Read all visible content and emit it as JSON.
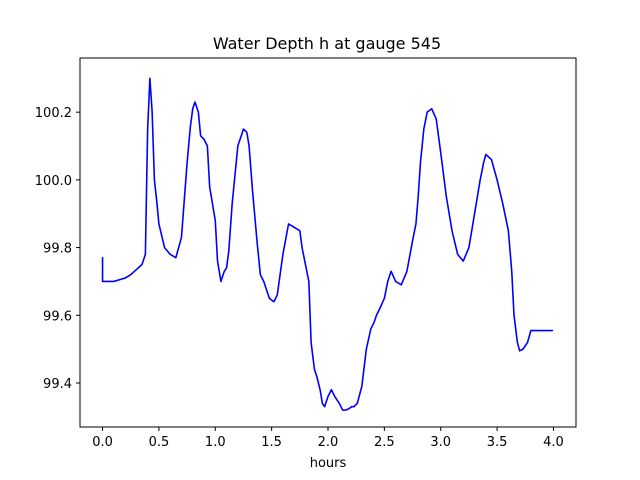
{
  "chart_data": {
    "type": "line",
    "title": "Water Depth h at gauge 545",
    "xlabel": "hours",
    "ylabel": "",
    "xlim": [
      -0.2,
      4.2
    ],
    "ylim": [
      99.27,
      100.36
    ],
    "xticks": [
      0.0,
      0.5,
      1.0,
      1.5,
      2.0,
      2.5,
      3.0,
      3.5,
      4.0
    ],
    "xtick_labels": [
      "0.0",
      "0.5",
      "1.0",
      "1.5",
      "2.0",
      "2.5",
      "3.0",
      "3.5",
      "4.0"
    ],
    "yticks": [
      99.4,
      99.6,
      99.8,
      100.0,
      100.2
    ],
    "ytick_labels": [
      "99.4",
      "99.6",
      "99.8",
      "100.0",
      "100.2"
    ],
    "grid": false,
    "series": [
      {
        "color": "#0000ff",
        "x": [
          0.0,
          0.0,
          0.05,
          0.1,
          0.15,
          0.2,
          0.25,
          0.3,
          0.35,
          0.38,
          0.4,
          0.42,
          0.44,
          0.46,
          0.48,
          0.5,
          0.55,
          0.6,
          0.65,
          0.7,
          0.75,
          0.78,
          0.8,
          0.82,
          0.85,
          0.87,
          0.9,
          0.93,
          0.95,
          0.98,
          1.0,
          1.02,
          1.05,
          1.08,
          1.1,
          1.12,
          1.15,
          1.2,
          1.25,
          1.28,
          1.3,
          1.33,
          1.37,
          1.4,
          1.43,
          1.45,
          1.48,
          1.52,
          1.55,
          1.6,
          1.65,
          1.7,
          1.75,
          1.77,
          1.8,
          1.83,
          1.85,
          1.88,
          1.9,
          1.93,
          1.95,
          1.97,
          2.0,
          2.03,
          2.06,
          2.1,
          2.13,
          2.16,
          2.19,
          2.21,
          2.23,
          2.26,
          2.3,
          2.34,
          2.38,
          2.41,
          2.43,
          2.46,
          2.5,
          2.53,
          2.56,
          2.6,
          2.65,
          2.7,
          2.75,
          2.78,
          2.8,
          2.82,
          2.85,
          2.88,
          2.92,
          2.96,
          3.0,
          3.05,
          3.1,
          3.15,
          3.2,
          3.25,
          3.3,
          3.35,
          3.38,
          3.4,
          3.45,
          3.5,
          3.55,
          3.6,
          3.63,
          3.65,
          3.68,
          3.7,
          3.73,
          3.77,
          3.8,
          3.83,
          3.87,
          3.9,
          3.93,
          3.96,
          3.98,
          3.99
        ],
        "y": [
          99.77,
          99.7,
          99.7,
          99.7,
          99.705,
          99.71,
          99.72,
          99.735,
          99.75,
          99.78,
          100.15,
          100.3,
          100.2,
          100.0,
          99.94,
          99.87,
          99.8,
          99.78,
          99.77,
          99.83,
          100.05,
          100.16,
          100.21,
          100.23,
          100.2,
          100.13,
          100.12,
          100.1,
          99.98,
          99.92,
          99.88,
          99.76,
          99.7,
          99.73,
          99.74,
          99.79,
          99.93,
          100.1,
          100.15,
          100.14,
          100.1,
          99.97,
          99.82,
          99.72,
          99.7,
          99.68,
          99.65,
          99.64,
          99.66,
          99.78,
          99.87,
          99.86,
          99.85,
          99.8,
          99.75,
          99.7,
          99.52,
          99.44,
          99.42,
          99.38,
          99.34,
          99.33,
          99.36,
          99.38,
          99.36,
          99.34,
          99.32,
          99.32,
          99.325,
          99.33,
          99.33,
          99.34,
          99.39,
          99.5,
          99.56,
          99.58,
          99.6,
          99.62,
          99.65,
          99.7,
          99.73,
          99.7,
          99.69,
          99.73,
          99.82,
          99.87,
          99.95,
          100.05,
          100.15,
          100.2,
          100.21,
          100.18,
          100.08,
          99.95,
          99.85,
          99.78,
          99.76,
          99.8,
          99.9,
          100.0,
          100.05,
          100.075,
          100.06,
          100.0,
          99.93,
          99.85,
          99.73,
          99.6,
          99.52,
          99.495,
          99.5,
          99.52,
          99.555,
          99.555,
          99.555,
          99.555,
          99.555,
          99.555,
          99.555,
          99.555
        ]
      }
    ]
  }
}
